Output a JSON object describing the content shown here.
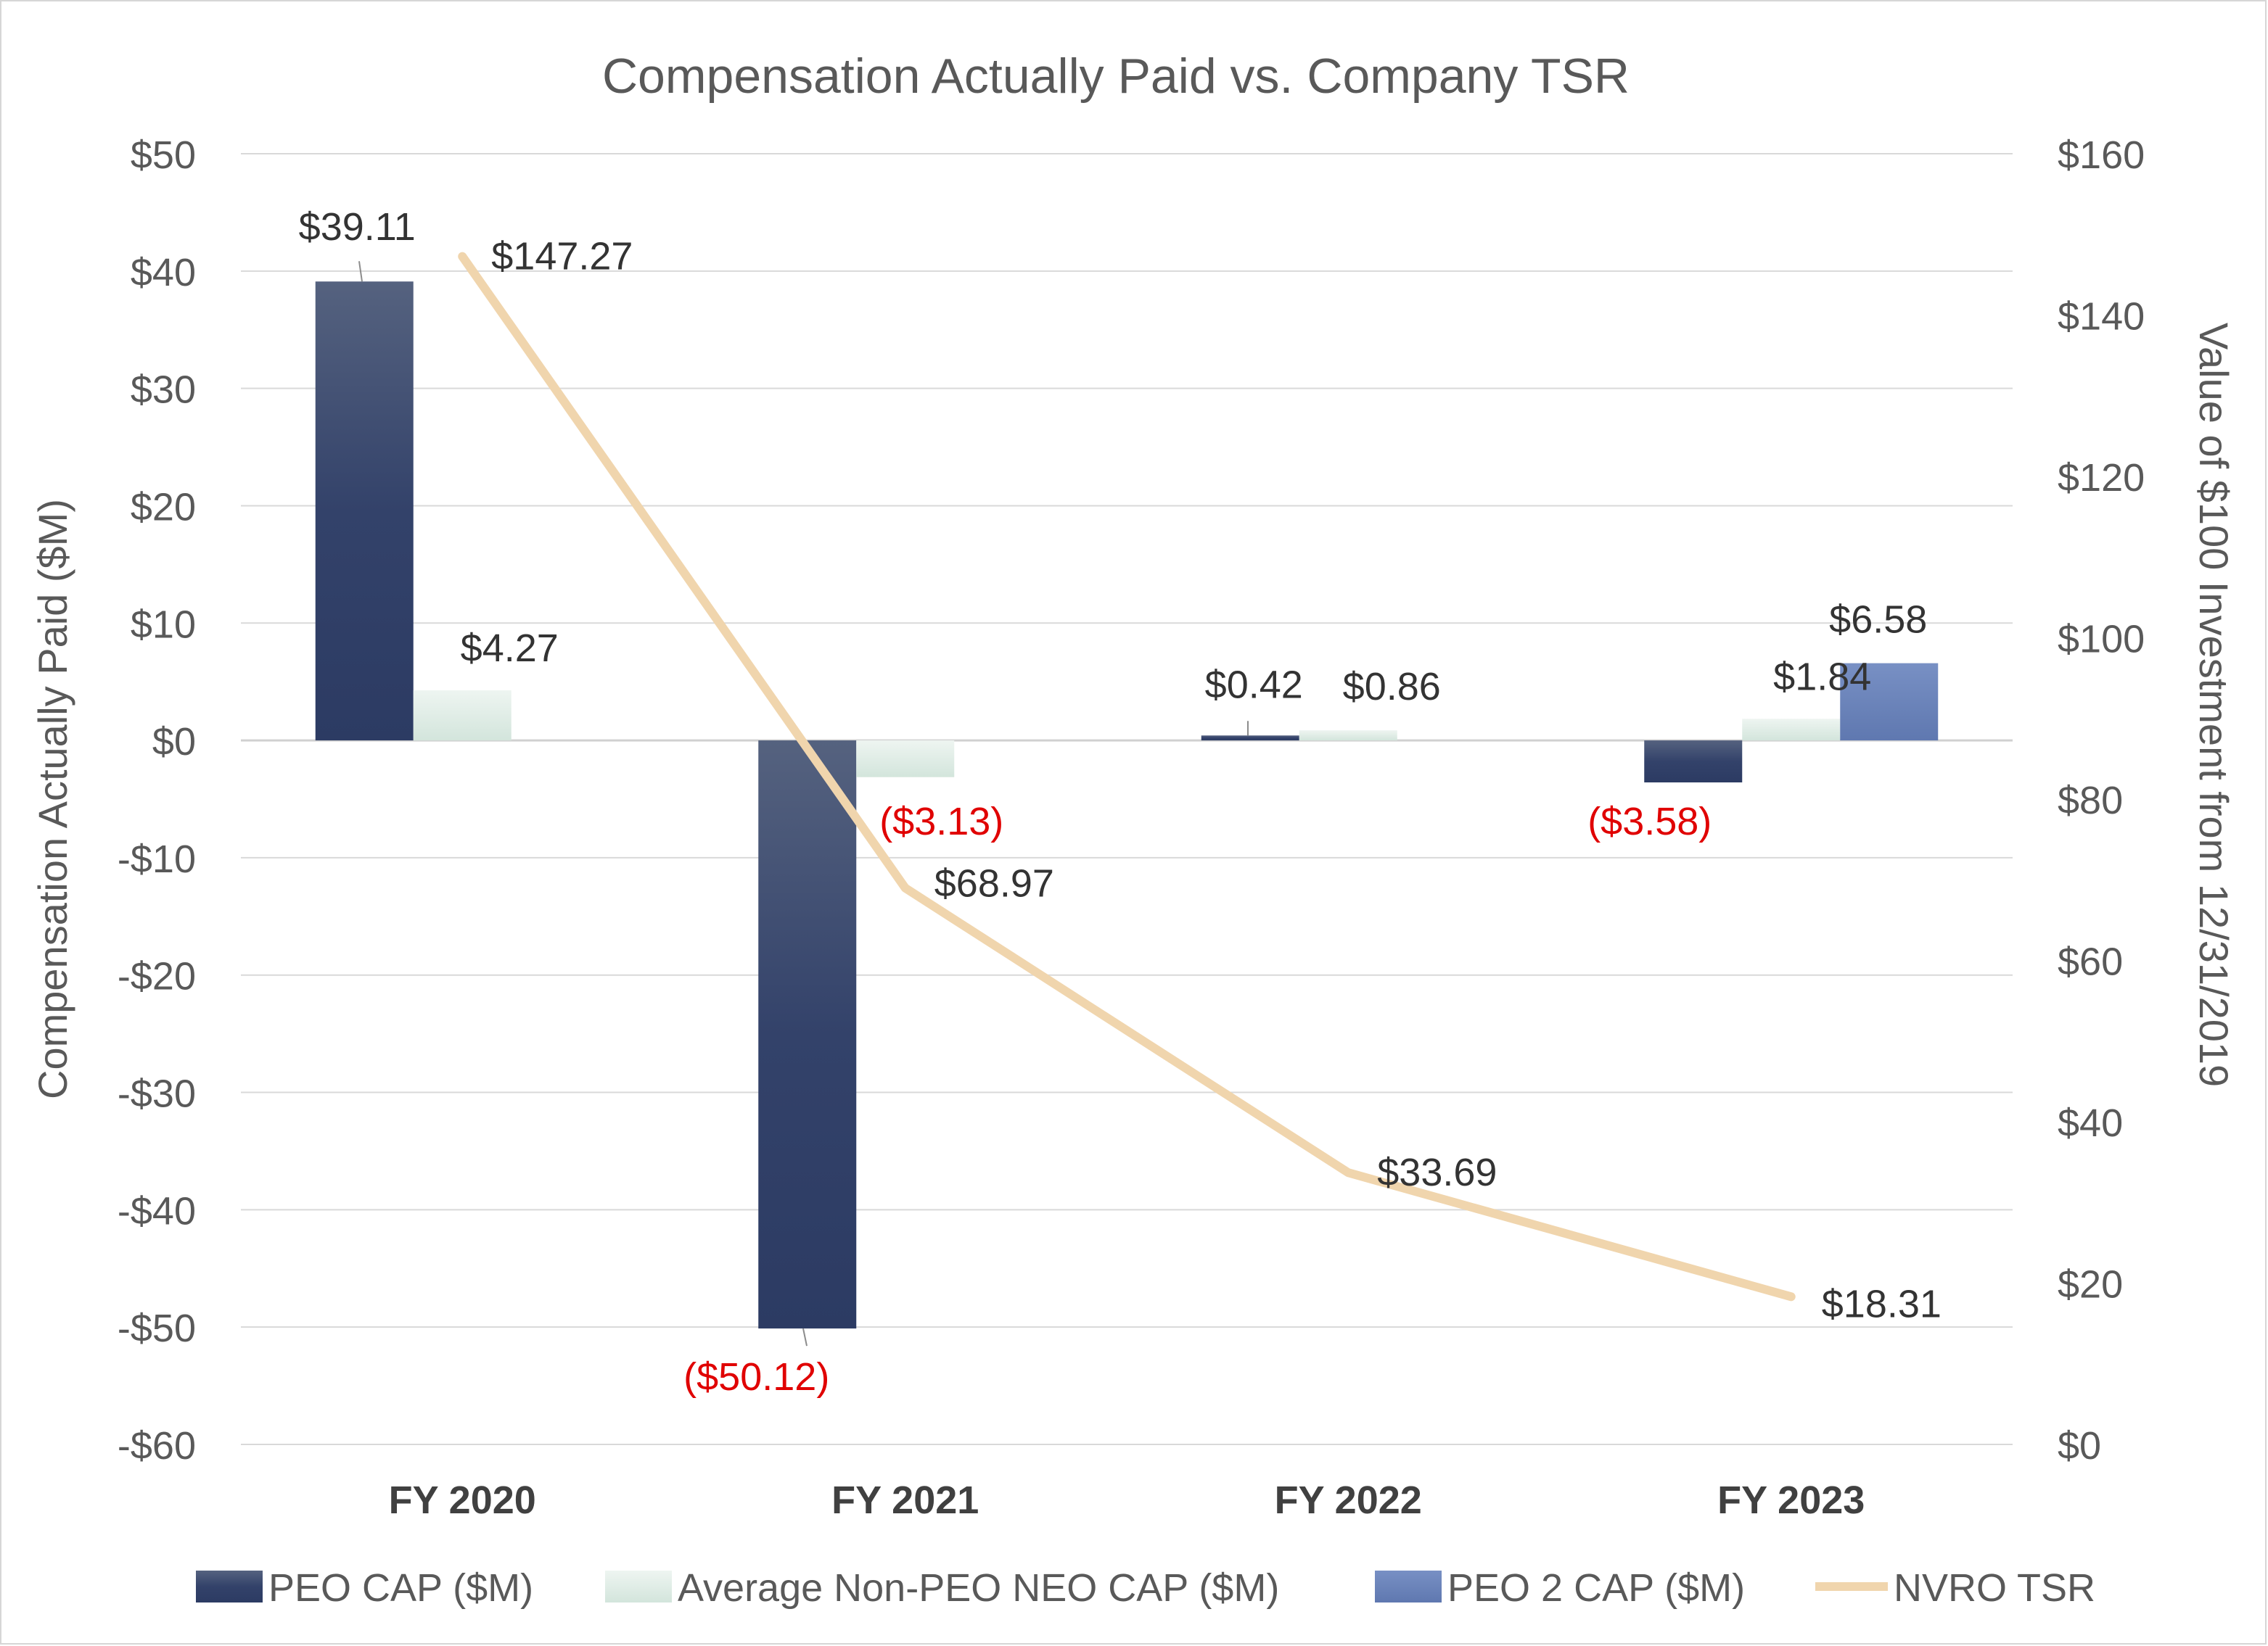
{
  "chart_data": {
    "type": "bar",
    "title": "Compensation Actually Paid vs. Company TSR",
    "categories": [
      "FY 2020",
      "FY 2021",
      "FY 2022",
      "FY 2023"
    ],
    "y_left": {
      "label": "Compensation Actually Paid ($M)",
      "range": [
        -60,
        50
      ],
      "ticks": [
        50,
        40,
        30,
        20,
        10,
        0,
        -10,
        -20,
        -30,
        -40,
        -50,
        -60
      ],
      "tick_labels": [
        "$50",
        "$40",
        "$30",
        "$20",
        "$10",
        "$0",
        "-$10",
        "-$20",
        "-$30",
        "-$40",
        "-$50",
        "-$60"
      ]
    },
    "y_right": {
      "label": "Value of $100 Investment from 12/31/2019",
      "range": [
        0,
        160
      ],
      "ticks": [
        160,
        140,
        120,
        100,
        80,
        60,
        40,
        20,
        0
      ],
      "tick_labels": [
        "$160",
        "$140",
        "$120",
        "$100",
        "$80",
        "$60",
        "$40",
        "$20",
        "$0"
      ]
    },
    "grid": true,
    "legend_position": "bottom",
    "series": [
      {
        "name": "PEO CAP ($M)",
        "type": "bar",
        "axis": "left",
        "color": "#2e3f66",
        "values": [
          39.11,
          -50.12,
          0.42,
          -3.58
        ],
        "labels": [
          "$39.11",
          "($50.12)",
          "$0.42",
          "($3.58)"
        ]
      },
      {
        "name": "Average Non-PEO NEO CAP ($M)",
        "type": "bar",
        "axis": "left",
        "color": "#dbeae3",
        "values": [
          4.27,
          -3.13,
          0.86,
          1.84
        ],
        "labels": [
          "$4.27",
          "($3.13)",
          "$0.86",
          "$1.84"
        ]
      },
      {
        "name": "PEO 2 CAP ($M)",
        "type": "bar",
        "axis": "left",
        "color": "#6b84bb",
        "values": [
          null,
          null,
          null,
          6.58
        ],
        "labels": [
          "",
          "",
          "",
          "$6.58"
        ]
      },
      {
        "name": "NVRO TSR",
        "type": "line",
        "axis": "right",
        "color": "#f0d5ad",
        "values": [
          147.27,
          68.97,
          33.69,
          18.31
        ],
        "labels": [
          "$147.27",
          "$68.97",
          "$33.69",
          "$18.31"
        ]
      }
    ],
    "label_colors": {
      "positive": "#333333",
      "negative": "#e00000"
    },
    "text_color": "#595959",
    "grid_color": "#d9d9d9"
  }
}
